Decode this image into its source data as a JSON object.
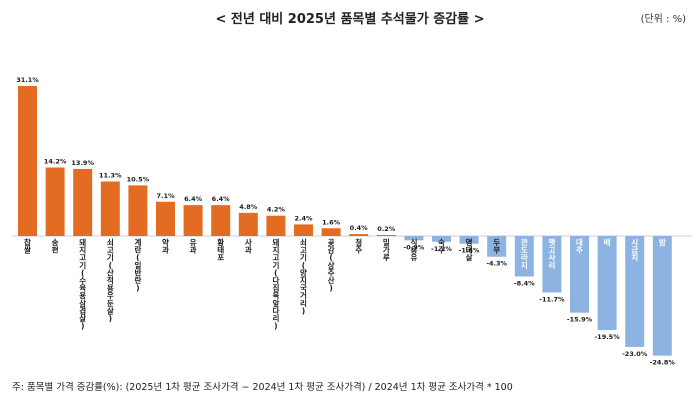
{
  "title": "< 전년 대비 2025년 품목별 추석물가 증감률 >",
  "unit": "(단위 : %)",
  "footnote": "주: 품목별 가격 증감률(%): (2025년 1차 평균 조사가격 − 2024년 1차 평균 조사가격) / 2024년 1차 평균 조사가격 * 100",
  "colors": {
    "positive": "#e36c22",
    "negative": "#8db3e2"
  },
  "chart_data": {
    "type": "bar",
    "categories": [
      "찹쌀",
      "송편",
      "돼지고기 (수육용 삼겹살)",
      "쇠고기 (산적용 우둔살)",
      "계란(일반란)",
      "약과",
      "유과",
      "황태포",
      "사과",
      "돼지고기 (다짐육 앞다리)",
      "쇠고기 (양지 국거리)",
      "곶감(상주산)",
      "청주",
      "밀가루",
      "식용유",
      "숙주",
      "명태살",
      "두부",
      "깐도라지",
      "햇고사리",
      "대추",
      "배",
      "시금치",
      "밤"
    ],
    "category_labels": [
      "찹쌀",
      "송편",
      "돼지고기(수육용삼겹살)",
      "쇠고기(산적용우둔살)",
      "계란(일반란)",
      "약과",
      "유과",
      "황태포",
      "사과",
      "돼지고기(다짐육앞다리)",
      "쇠고기(양지국거리)",
      "곶감(상주산)",
      "청주",
      "밀가루",
      "식용유",
      "숙주",
      "명태살",
      "두부",
      "깐도라지",
      "햇고사리",
      "대추",
      "배",
      "시금치",
      "밤"
    ],
    "values": [
      31.1,
      14.2,
      13.9,
      11.3,
      10.5,
      7.1,
      6.4,
      6.4,
      4.8,
      4.2,
      2.4,
      1.6,
      0.4,
      0.2,
      -0.9,
      -1.2,
      -1.6,
      -4.3,
      -8.4,
      -11.7,
      -15.9,
      -19.5,
      -23.0,
      -24.8
    ],
    "value_labels": [
      "31.1%",
      "14.2%",
      "13.9%",
      "11.3%",
      "10.5%",
      "7.1%",
      "6.4%",
      "6.4%",
      "4.8%",
      "4.2%",
      "2.4%",
      "1.6%",
      "0.4%",
      "0.2%",
      "-0.9%",
      "-1.2%",
      "-1.6%",
      "-4.3%",
      "-8.4%",
      "-11.7%",
      "-15.9%",
      "-19.5%",
      "-23.0%",
      "-24.8%"
    ],
    "ylim": [
      -24.8,
      31.1
    ],
    "grid": false,
    "legend": "none"
  }
}
